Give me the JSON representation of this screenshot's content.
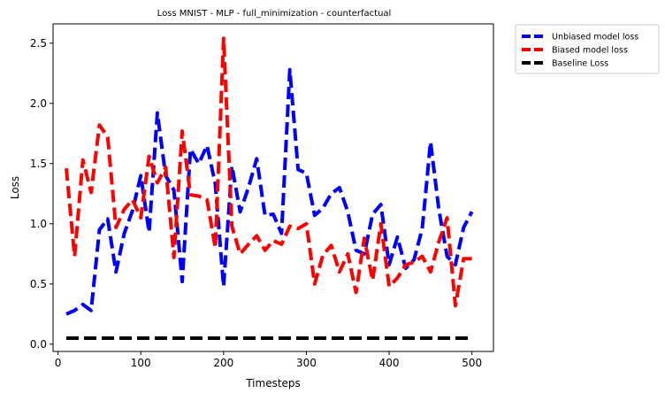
{
  "chart_data": {
    "type": "line",
    "title": "Loss MNIST - MLP - full_minimization - counterfactual",
    "xlabel": "Timesteps",
    "ylabel": "Loss",
    "xlim": [
      -6,
      526
    ],
    "ylim": [
      -0.06,
      2.66
    ],
    "x_ticks": [
      0,
      100,
      200,
      300,
      400,
      500
    ],
    "y_ticks": [
      0.0,
      0.5,
      1.0,
      1.5,
      2.0,
      2.5
    ],
    "x_tick_labels": [
      "0",
      "100",
      "200",
      "300",
      "400",
      "500"
    ],
    "y_tick_labels": [
      "0.0",
      "0.5",
      "1.0",
      "1.5",
      "2.0",
      "2.5"
    ],
    "grid": false,
    "legend_position": "outside-top-right",
    "series": [
      {
        "name": "Unbiased model loss",
        "color": "#0000ff",
        "x": [
          10,
          20,
          30,
          40,
          50,
          60,
          70,
          80,
          90,
          100,
          110,
          120,
          130,
          140,
          150,
          160,
          170,
          180,
          190,
          200,
          210,
          220,
          230,
          240,
          250,
          260,
          270,
          280,
          290,
          300,
          310,
          320,
          330,
          340,
          350,
          360,
          370,
          380,
          390,
          400,
          410,
          420,
          430,
          440,
          450,
          460,
          470,
          480,
          490,
          500
        ],
        "y": [
          0.25,
          0.28,
          0.33,
          0.28,
          0.95,
          1.04,
          0.6,
          0.92,
          1.11,
          1.4,
          0.93,
          1.92,
          1.4,
          1.28,
          0.52,
          1.62,
          1.5,
          1.65,
          1.33,
          0.48,
          1.48,
          1.1,
          1.3,
          1.54,
          1.07,
          1.08,
          0.92,
          2.28,
          1.45,
          1.42,
          1.07,
          1.13,
          1.25,
          1.3,
          1.1,
          0.78,
          0.75,
          1.08,
          1.16,
          0.66,
          0.89,
          0.63,
          0.7,
          0.96,
          1.68,
          1.12,
          0.73,
          0.66,
          0.97,
          1.1
        ]
      },
      {
        "name": "Biased model loss",
        "color": "#ff0000",
        "x": [
          10,
          20,
          30,
          40,
          50,
          60,
          70,
          80,
          90,
          100,
          110,
          120,
          130,
          140,
          150,
          160,
          170,
          180,
          190,
          200,
          210,
          220,
          230,
          240,
          250,
          260,
          270,
          280,
          290,
          300,
          310,
          320,
          330,
          340,
          350,
          360,
          370,
          380,
          390,
          400,
          410,
          420,
          430,
          440,
          450,
          460,
          470,
          480,
          490,
          500
        ],
        "y": [
          1.46,
          0.73,
          1.53,
          1.26,
          1.82,
          1.72,
          0.97,
          1.12,
          1.2,
          1.05,
          1.56,
          1.34,
          1.47,
          0.72,
          1.77,
          1.24,
          1.23,
          1.2,
          0.8,
          2.54,
          0.98,
          0.75,
          0.83,
          0.9,
          0.78,
          0.86,
          0.83,
          0.98,
          0.96,
          1.0,
          0.5,
          0.74,
          0.82,
          0.6,
          0.75,
          0.43,
          0.88,
          0.53,
          1.0,
          0.48,
          0.55,
          0.66,
          0.68,
          0.73,
          0.6,
          0.85,
          1.05,
          0.32,
          0.71,
          0.71
        ]
      },
      {
        "name": "Baseline Loss",
        "color": "#000000",
        "x": [
          10,
          20,
          30,
          40,
          50,
          60,
          70,
          80,
          90,
          100,
          110,
          120,
          130,
          140,
          150,
          160,
          170,
          180,
          190,
          200,
          210,
          220,
          230,
          240,
          250,
          260,
          270,
          280,
          290,
          300,
          310,
          320,
          330,
          340,
          350,
          360,
          370,
          380,
          390,
          400,
          410,
          420,
          430,
          440,
          450,
          460,
          470,
          480,
          490,
          500
        ],
        "y": [
          0.05,
          0.05,
          0.05,
          0.05,
          0.05,
          0.05,
          0.05,
          0.05,
          0.05,
          0.05,
          0.05,
          0.05,
          0.05,
          0.05,
          0.05,
          0.05,
          0.05,
          0.05,
          0.05,
          0.05,
          0.05,
          0.05,
          0.05,
          0.05,
          0.05,
          0.05,
          0.05,
          0.05,
          0.05,
          0.05,
          0.05,
          0.05,
          0.05,
          0.05,
          0.05,
          0.05,
          0.05,
          0.05,
          0.05,
          0.05,
          0.05,
          0.05,
          0.05,
          0.05,
          0.05,
          0.05,
          0.05,
          0.05,
          0.05,
          0.05
        ]
      }
    ]
  }
}
